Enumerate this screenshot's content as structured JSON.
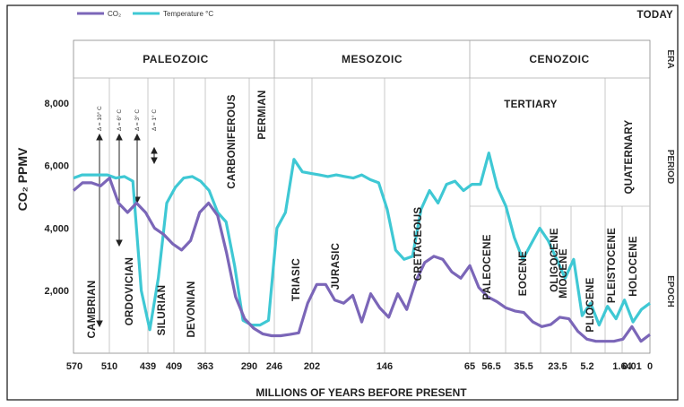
{
  "chart_data": {
    "type": "line",
    "top_right_label": "TODAY",
    "xlabel": "MILLIONS OF YEARS BEFORE PRESENT",
    "ylabel": "CO₂ PPMV",
    "x_tick_labels": [
      "570",
      "510",
      "439",
      "409",
      "363",
      "290",
      "246",
      "202",
      "146",
      "65",
      "56.5",
      "35.5",
      "23.5",
      "5.2",
      "1.64",
      "0.01",
      "0"
    ],
    "y_tick_labels": [
      "8,000",
      "6,000",
      "4,000",
      "2,000"
    ],
    "y_ticks": [
      8000,
      6000,
      4000,
      2000
    ],
    "ylim": [
      0,
      8800
    ],
    "row_labels": [
      "ERA",
      "PERIOD",
      "EPOCH"
    ],
    "legend": [
      {
        "name": "CO₂",
        "color": "#7b66b8"
      },
      {
        "name": "Temperature °C",
        "color": "#3fc8d4"
      }
    ],
    "eras": [
      "PALEOZOIC",
      "MESOZOIC",
      "CENOZOIC"
    ],
    "periods": [
      "CAMBRIAN",
      "ORDOVICIAN",
      "SILURIAN",
      "DEVONIAN",
      "CARBONIFEROUS",
      "PERMIAN",
      "TRIASIC",
      "JURASIC",
      "CRETACEOUS",
      "TERTIARY",
      "QUATERNARY"
    ],
    "epochs": [
      "PALEOCENE",
      "EOCENE",
      "OLIGOCENE",
      "MIOCENE",
      "PLIOCENE",
      "PLEISTOCENE",
      "HOLOCENE"
    ],
    "delta_labels": [
      "Δ = 10° C",
      "Δ = 6° C",
      "Δ = 3° C",
      "Δ = 1° C"
    ],
    "series": [
      {
        "name": "CO₂",
        "color": "#7b66b8",
        "values": [
          5200,
          5450,
          5450,
          5350,
          5600,
          4800,
          4500,
          4800,
          4500,
          4000,
          3800,
          3500,
          3300,
          3600,
          4500,
          4800,
          4400,
          3200,
          1800,
          1100,
          800,
          620,
          560,
          560,
          600,
          650,
          1600,
          2200,
          2200,
          1700,
          1600,
          1850,
          1000,
          1900,
          1450,
          1150,
          1900,
          1400,
          2300,
          2900,
          3100,
          3000,
          2600,
          2400,
          2800,
          2100,
          1800,
          1650,
          1450,
          1350,
          1300,
          1000,
          850,
          920,
          1150,
          1100,
          700,
          450,
          380,
          380,
          380,
          450,
          850,
          380,
          600
        ]
      },
      {
        "name": "Temperature °C",
        "color": "#3fc8d4",
        "values": [
          5600,
          5700,
          5700,
          5700,
          5700,
          5600,
          5650,
          5500,
          2000,
          750,
          2400,
          4800,
          5300,
          5600,
          5650,
          5500,
          5200,
          4500,
          4200,
          2800,
          1050,
          900,
          900,
          1050,
          4000,
          4500,
          6200,
          5800,
          5750,
          5700,
          5650,
          5700,
          5650,
          5600,
          5700,
          5550,
          5450,
          4600,
          3300,
          3000,
          3100,
          4600,
          5200,
          4800,
          5400,
          5500,
          5200,
          5400,
          5400,
          6400,
          5300,
          4700,
          3700,
          3000,
          3500,
          4000,
          3600,
          3000,
          2400,
          3000,
          1200,
          1600,
          900,
          1500,
          1100,
          1700,
          1000,
          1400,
          1600
        ]
      }
    ]
  }
}
